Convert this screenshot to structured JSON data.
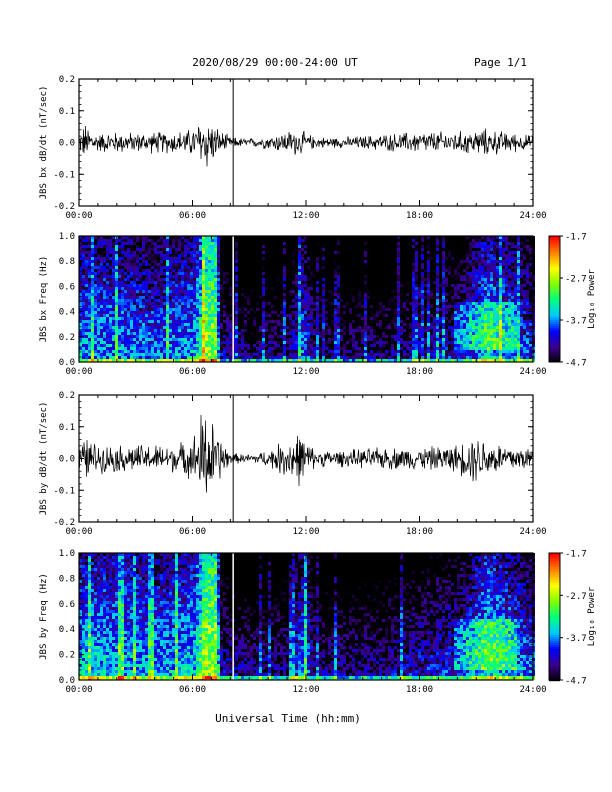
{
  "header": {
    "title": "2020/08/29  00:00-24:00 UT",
    "page": "Page 1/1"
  },
  "xaxis": {
    "label": "Universal Time (hh:mm)",
    "ticks": [
      "00:00",
      "06:00",
      "12:00",
      "18:00",
      "24:00"
    ],
    "range_hours": [
      0,
      24
    ]
  },
  "colorbar": {
    "label": "Log₁₀ Power",
    "ticks": [
      "-1.7",
      "-2.7",
      "-3.7",
      "-4.7"
    ],
    "range": [
      -4.7,
      -1.7
    ],
    "colormap": [
      "#000000",
      "#3c008c",
      "#0000ff",
      "#00c8ff",
      "#00ff80",
      "#80ff00",
      "#ffff00",
      "#ff8000",
      "#ff0000"
    ]
  },
  "chart_data": [
    {
      "type": "line",
      "ylabel": "JBS bx dB/dt (nT/sec)",
      "yticks": [
        "0.2",
        "0.1",
        "0.0",
        "-0.1",
        "-0.2"
      ],
      "ylim": [
        -0.2,
        0.2
      ],
      "xlim": [
        0,
        24
      ],
      "marker_time_hours": 8.15,
      "envelope": [
        {
          "t": 0,
          "amp": 0.03
        },
        {
          "t": 0.3,
          "amp": 0.07
        },
        {
          "t": 1,
          "amp": 0.035
        },
        {
          "t": 2,
          "amp": 0.04
        },
        {
          "t": 3,
          "amp": 0.035
        },
        {
          "t": 4,
          "amp": 0.04
        },
        {
          "t": 5,
          "amp": 0.04
        },
        {
          "t": 6,
          "amp": 0.05
        },
        {
          "t": 6.7,
          "amp": 0.11
        },
        {
          "t": 7.2,
          "amp": 0.06
        },
        {
          "t": 8,
          "amp": 0.02
        },
        {
          "t": 9,
          "amp": 0.015
        },
        {
          "t": 10,
          "amp": 0.025
        },
        {
          "t": 11.5,
          "amp": 0.05
        },
        {
          "t": 12.5,
          "amp": 0.02
        },
        {
          "t": 14,
          "amp": 0.02
        },
        {
          "t": 16,
          "amp": 0.03
        },
        {
          "t": 18,
          "amp": 0.04
        },
        {
          "t": 20,
          "amp": 0.04
        },
        {
          "t": 21.5,
          "amp": 0.05
        },
        {
          "t": 24,
          "amp": 0.025
        }
      ],
      "color": "#000000"
    },
    {
      "type": "heatmap",
      "ylabel": "JBS bx Freq (Hz)",
      "yticks": [
        "1.0",
        "0.8",
        "0.6",
        "0.4",
        "0.2",
        "0.0"
      ],
      "ylim": [
        0,
        1.0
      ],
      "xlim": [
        0,
        24
      ],
      "zlim": [
        -4.7,
        -1.7
      ],
      "gap_time_hours": 8.15,
      "activity": [
        {
          "t": 0,
          "level": 0.45
        },
        {
          "t": 2,
          "level": 0.42
        },
        {
          "t": 4,
          "level": 0.38
        },
        {
          "t": 6,
          "level": 0.45
        },
        {
          "t": 6.6,
          "level": 0.75
        },
        {
          "t": 7.2,
          "level": 0.75
        },
        {
          "t": 7.4,
          "level": 0.2
        },
        {
          "t": 9,
          "level": 0.12
        },
        {
          "t": 11,
          "level": 0.15
        },
        {
          "t": 11.8,
          "level": 0.4
        },
        {
          "t": 12.5,
          "level": 0.12
        },
        {
          "t": 16,
          "level": 0.12
        },
        {
          "t": 18,
          "level": 0.2
        },
        {
          "t": 20,
          "level": 0.25
        },
        {
          "t": 21.5,
          "level": 0.5
        },
        {
          "t": 24,
          "level": 0.3
        }
      ]
    },
    {
      "type": "line",
      "ylabel": "JBS by dB/dt (nT/sec)",
      "yticks": [
        "0.2",
        "0.1",
        "0.0",
        "-0.1",
        "-0.2"
      ],
      "ylim": [
        -0.2,
        0.2
      ],
      "xlim": [
        0,
        24
      ],
      "marker_time_hours": 8.15,
      "envelope": [
        {
          "t": 0,
          "amp": 0.04
        },
        {
          "t": 0.4,
          "amp": 0.08
        },
        {
          "t": 1,
          "amp": 0.05
        },
        {
          "t": 2,
          "amp": 0.05
        },
        {
          "t": 3,
          "amp": 0.05
        },
        {
          "t": 4,
          "amp": 0.05
        },
        {
          "t": 5,
          "amp": 0.05
        },
        {
          "t": 6,
          "amp": 0.07
        },
        {
          "t": 6.6,
          "amp": 0.2
        },
        {
          "t": 7.3,
          "amp": 0.1
        },
        {
          "t": 8,
          "amp": 0.02
        },
        {
          "t": 9,
          "amp": 0.015
        },
        {
          "t": 10,
          "amp": 0.03
        },
        {
          "t": 11.6,
          "amp": 0.1
        },
        {
          "t": 12.5,
          "amp": 0.03
        },
        {
          "t": 14,
          "amp": 0.03
        },
        {
          "t": 16,
          "amp": 0.04
        },
        {
          "t": 18,
          "amp": 0.04
        },
        {
          "t": 20,
          "amp": 0.05
        },
        {
          "t": 20.8,
          "amp": 0.09
        },
        {
          "t": 22,
          "amp": 0.06
        },
        {
          "t": 24,
          "amp": 0.04
        }
      ],
      "color": "#000000"
    },
    {
      "type": "heatmap",
      "ylabel": "JBS by Freq (Hz)",
      "yticks": [
        "1.0",
        "0.8",
        "0.6",
        "0.4",
        "0.2",
        "0.0"
      ],
      "ylim": [
        0,
        1.0
      ],
      "xlim": [
        0,
        24
      ],
      "zlim": [
        -4.7,
        -1.7
      ],
      "gap_time_hours": 8.15,
      "activity": [
        {
          "t": 0,
          "level": 0.5
        },
        {
          "t": 2,
          "level": 0.48
        },
        {
          "t": 4,
          "level": 0.45
        },
        {
          "t": 6,
          "level": 0.5
        },
        {
          "t": 6.6,
          "level": 0.8
        },
        {
          "t": 7.2,
          "level": 0.8
        },
        {
          "t": 7.4,
          "level": 0.22
        },
        {
          "t": 9,
          "level": 0.15
        },
        {
          "t": 11,
          "level": 0.18
        },
        {
          "t": 11.8,
          "level": 0.45
        },
        {
          "t": 12.5,
          "level": 0.15
        },
        {
          "t": 16,
          "level": 0.18
        },
        {
          "t": 18,
          "level": 0.25
        },
        {
          "t": 20,
          "level": 0.3
        },
        {
          "t": 21.5,
          "level": 0.55
        },
        {
          "t": 24,
          "level": 0.35
        }
      ]
    }
  ]
}
